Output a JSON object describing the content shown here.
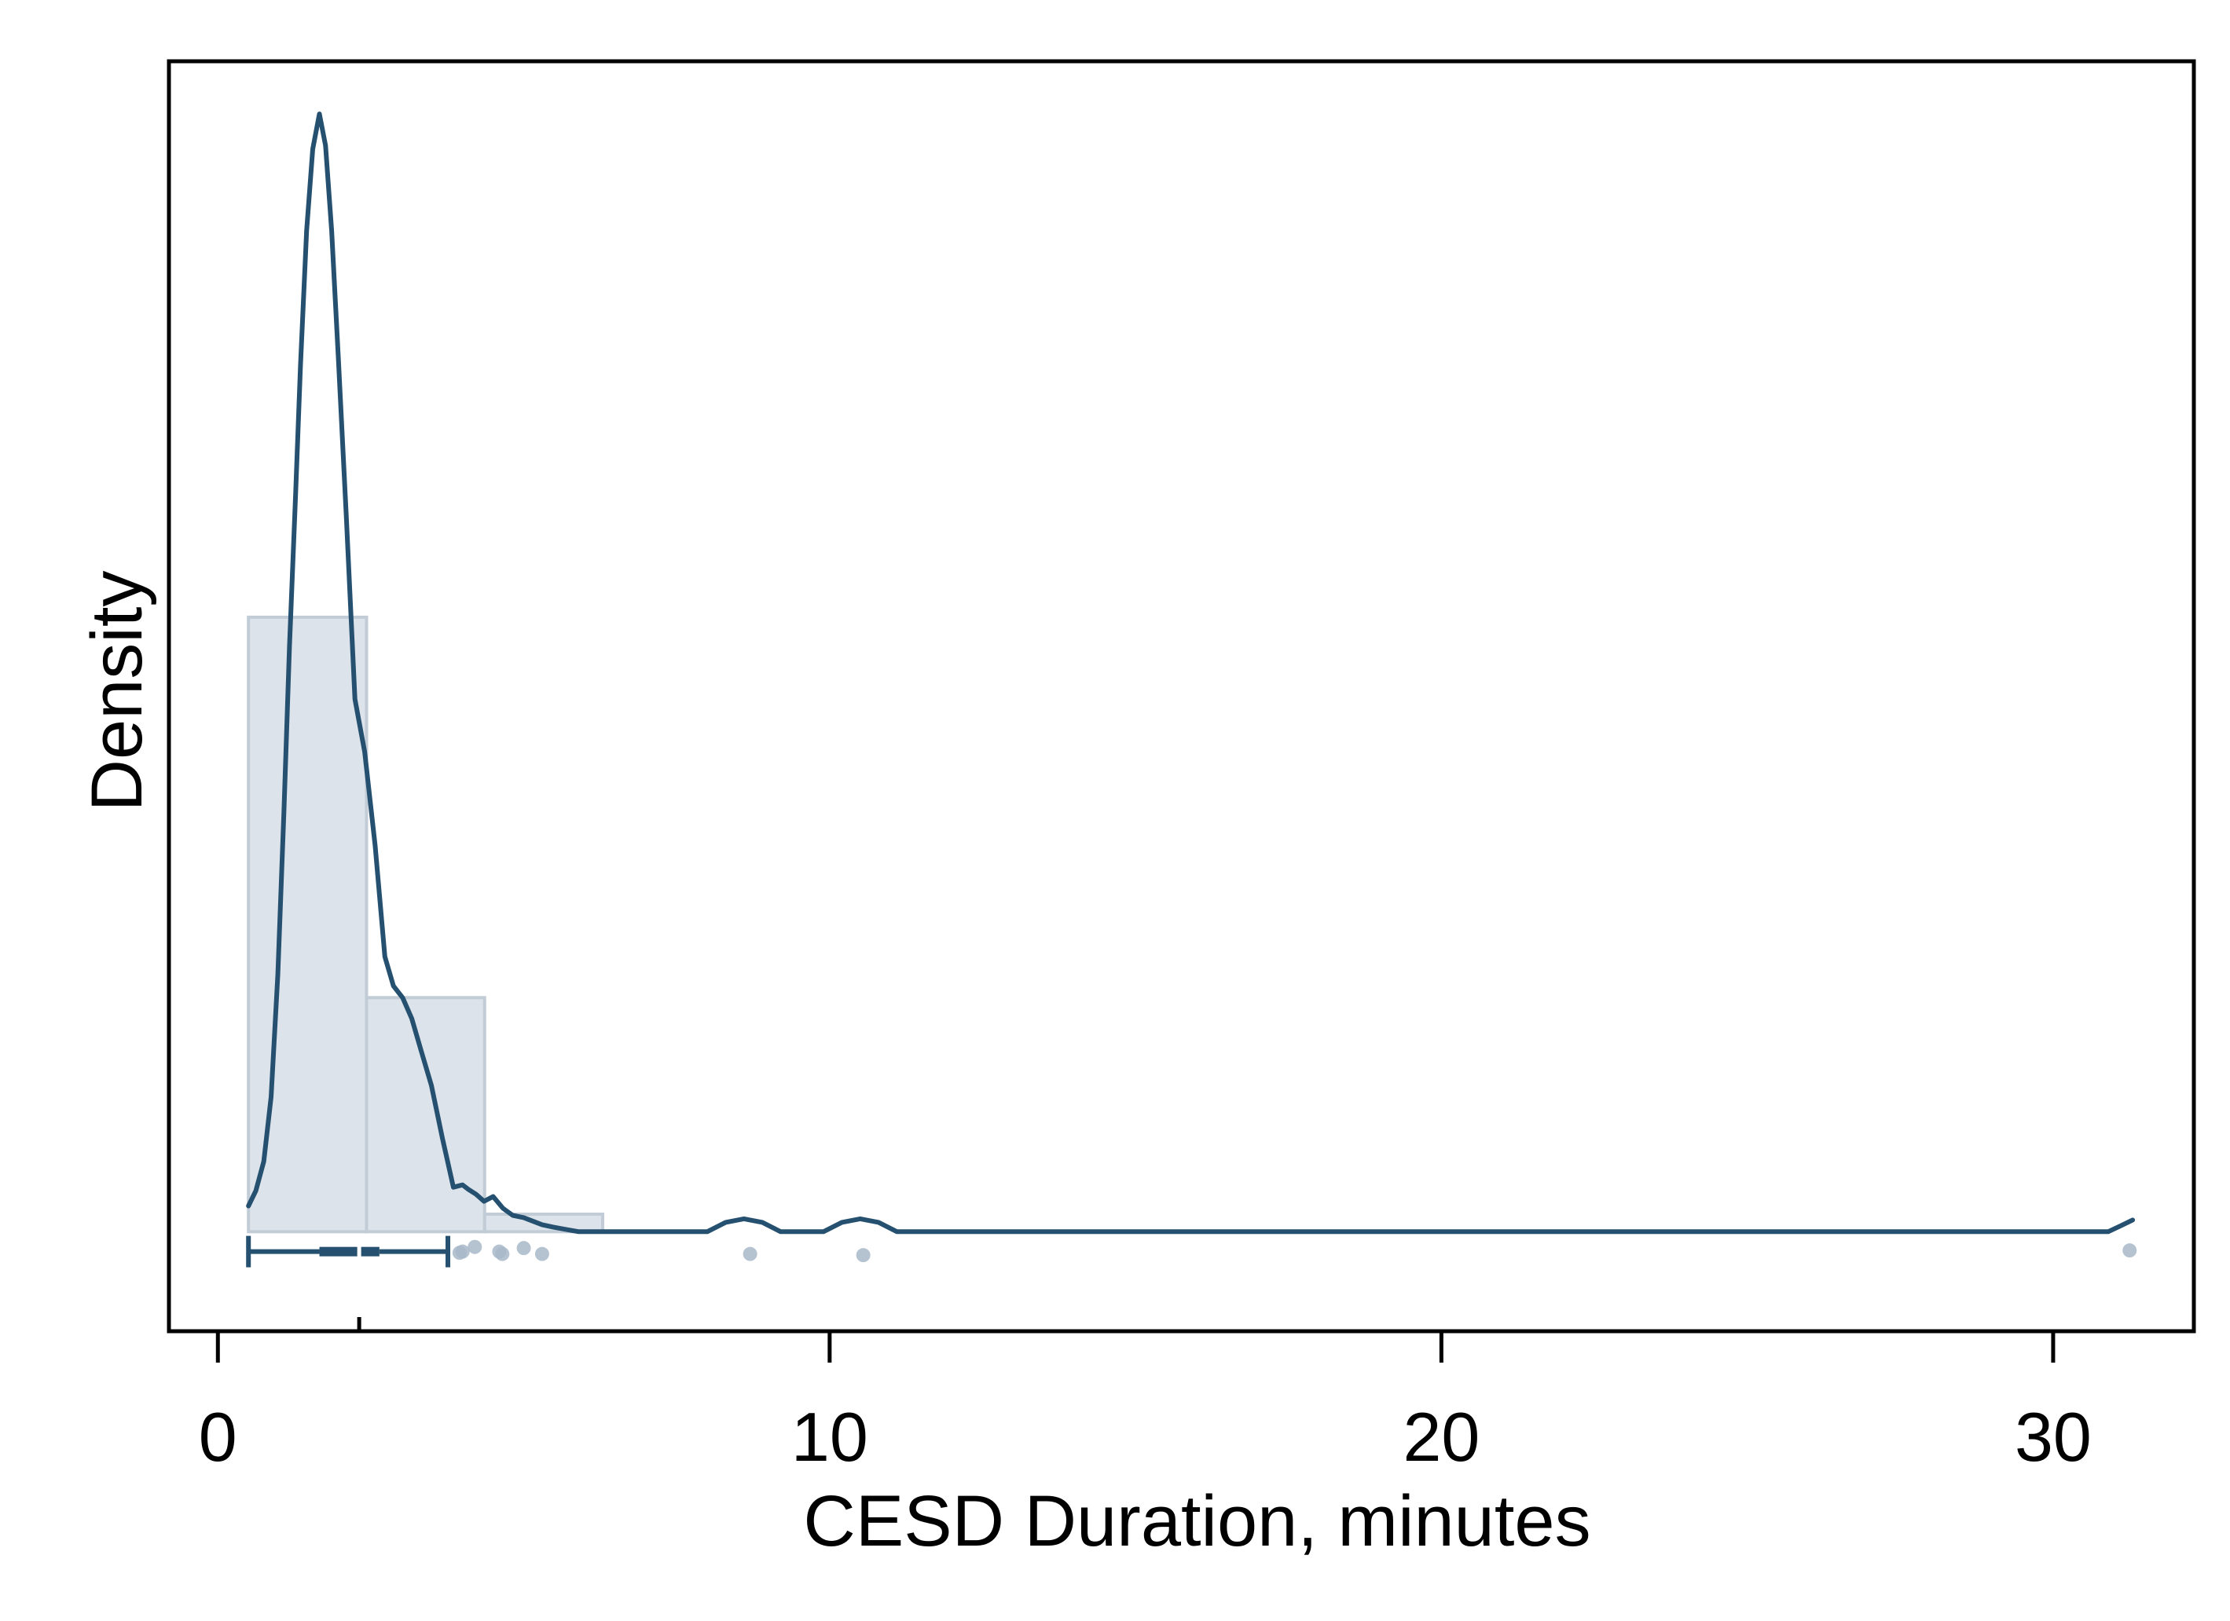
{
  "chart_data": {
    "type": "histogram",
    "xlabel": "CESD Duration, minutes",
    "ylabel": "Density",
    "xlim": [
      -0.8,
      32.3
    ],
    "ylim": [
      -0.085,
      1.0
    ],
    "xticks": [
      0,
      10,
      20,
      30
    ],
    "grid": false,
    "colors": {
      "bar_fill": "#dce3ea",
      "bar_stroke": "#c2ccd7",
      "line": "#25506f",
      "outlier": "#a8b8c9",
      "frame": "#000000"
    },
    "histogram": {
      "bins": [
        {
          "x0": 0.5,
          "x1": 2.43,
          "height": 0.525
        },
        {
          "x0": 2.43,
          "x1": 4.36,
          "height": 0.2
        },
        {
          "x0": 4.36,
          "x1": 6.29,
          "height": 0.015
        }
      ]
    },
    "density_curve": {
      "x": [
        0.5,
        0.62,
        0.75,
        0.87,
        0.98,
        1.08,
        1.17,
        1.27,
        1.35,
        1.45,
        1.55,
        1.66,
        1.76,
        1.86,
        1.97,
        2.1,
        2.24,
        2.4,
        2.57,
        2.73,
        2.87,
        3.02,
        3.17,
        3.32,
        3.49,
        3.67,
        3.85,
        4.0,
        4.1,
        4.22,
        4.35,
        4.5,
        4.66,
        4.82,
        5.0,
        5.15,
        5.3,
        5.48,
        5.68,
        5.9,
        6.1,
        6.3,
        8.0,
        8.3,
        8.6,
        8.9,
        9.2,
        9.9,
        10.2,
        10.5,
        10.8,
        11.1,
        30.9,
        31.1,
        31.3
      ],
      "y": [
        0.022,
        0.035,
        0.06,
        0.115,
        0.22,
        0.36,
        0.5,
        0.63,
        0.74,
        0.855,
        0.925,
        0.955,
        0.928,
        0.855,
        0.745,
        0.61,
        0.455,
        0.41,
        0.33,
        0.235,
        0.21,
        0.2,
        0.182,
        0.155,
        0.125,
        0.08,
        0.038,
        0.04,
        0.036,
        0.032,
        0.026,
        0.03,
        0.02,
        0.014,
        0.012,
        0.009,
        0.006,
        0.004,
        0.002,
        0.0,
        0.0,
        0.0,
        0.0,
        0.008,
        0.011,
        0.008,
        0.0,
        0.0,
        0.008,
        0.011,
        0.008,
        0.0,
        0.0,
        0.005,
        0.01
      ]
    },
    "box_plot": {
      "whisker_low": 0.5,
      "q1": 1.66,
      "median": 2.31,
      "q3": 2.64,
      "whisker_high": 3.76,
      "y": -0.017
    },
    "outliers": [
      {
        "x": 3.95,
        "y": -0.018
      },
      {
        "x": 4.0,
        "y": -0.017
      },
      {
        "x": 4.2,
        "y": -0.013
      },
      {
        "x": 4.6,
        "y": -0.017
      },
      {
        "x": 4.65,
        "y": -0.019
      },
      {
        "x": 5.0,
        "y": -0.014
      },
      {
        "x": 5.3,
        "y": -0.019
      },
      {
        "x": 8.7,
        "y": -0.019
      },
      {
        "x": 10.55,
        "y": -0.02
      },
      {
        "x": 31.25,
        "y": -0.016
      }
    ]
  }
}
